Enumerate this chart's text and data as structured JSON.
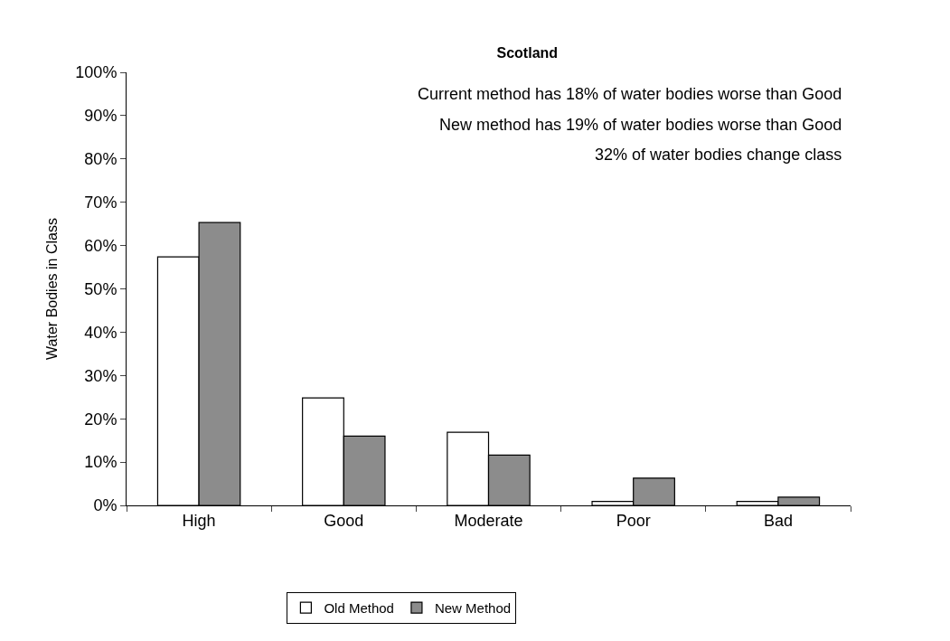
{
  "chart_data": {
    "type": "bar",
    "title": "Scotland",
    "ylabel": "Water Bodies in Class",
    "categories": [
      "High",
      "Good",
      "Moderate",
      "Poor",
      "Bad"
    ],
    "series": [
      {
        "name": "Old Method",
        "color": "#ffffff",
        "values": [
          57.4,
          24.8,
          16.9,
          0.9,
          0.9
        ]
      },
      {
        "name": "New Method",
        "color": "#8c8c8c",
        "values": [
          65.3,
          16.0,
          11.6,
          6.3,
          1.9
        ]
      }
    ],
    "ylim": [
      0,
      100
    ],
    "yticks": [
      {
        "value": 0,
        "label": "0%"
      },
      {
        "value": 10,
        "label": "10%"
      },
      {
        "value": 20,
        "label": "20%"
      },
      {
        "value": 30,
        "label": "30%"
      },
      {
        "value": 40,
        "label": "40%"
      },
      {
        "value": 50,
        "label": "50%"
      },
      {
        "value": 60,
        "label": "60%"
      },
      {
        "value": 70,
        "label": "70%"
      },
      {
        "value": 80,
        "label": "80%"
      },
      {
        "value": 90,
        "label": "90%"
      },
      {
        "value": 100,
        "label": "100%"
      }
    ],
    "annotations": [
      "Current method has 18% of water bodies worse than Good",
      "New method has 19% of water bodies worse than Good",
      "32% of water bodies change class"
    ],
    "grid": false,
    "legend": "bottom"
  }
}
